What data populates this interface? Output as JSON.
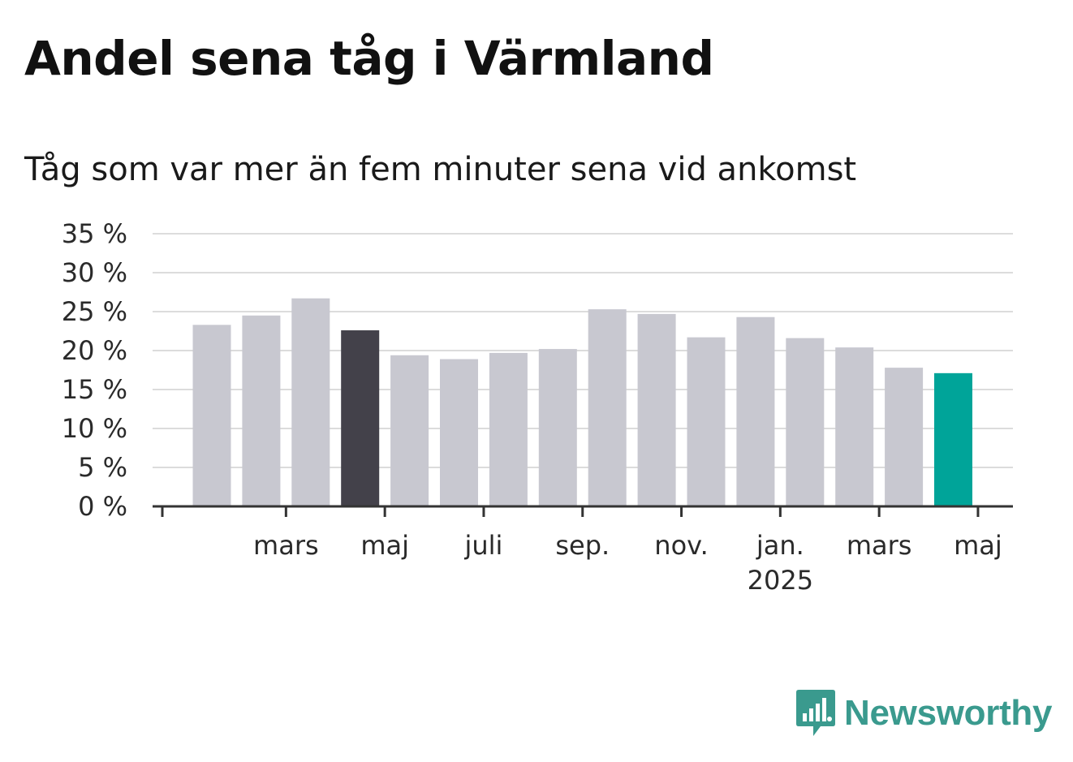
{
  "header": {
    "title": "Andel sena tåg i Värmland",
    "subtitle": "Tåg som var mer än fem minuter sena vid ankomst"
  },
  "brand": {
    "name": "Newsworthy",
    "logo_icon": "newsworthy-logo-icon",
    "color": "#3a9a8e"
  },
  "chart_data": {
    "type": "bar",
    "x_tick_labels": [
      {
        "label": "mars",
        "index": 2
      },
      {
        "label": "maj",
        "index": 4
      },
      {
        "label": "juli",
        "index": 6
      },
      {
        "label": "sep.",
        "index": 8
      },
      {
        "label": "nov.",
        "index": 10
      },
      {
        "label": "jan.",
        "sublabel": "2025",
        "index": 12
      },
      {
        "label": "mars",
        "index": 14
      },
      {
        "label": "maj",
        "index": 16
      }
    ],
    "values": [
      23.3,
      24.5,
      26.7,
      22.6,
      19.4,
      18.9,
      19.7,
      20.2,
      25.3,
      24.7,
      21.7,
      24.3,
      21.6,
      20.4,
      17.8,
      17.1
    ],
    "bar_colors": [
      "#c8c8d0",
      "#c8c8d0",
      "#c8c8d0",
      "#43414a",
      "#c8c8d0",
      "#c8c8d0",
      "#c8c8d0",
      "#c8c8d0",
      "#c8c8d0",
      "#c8c8d0",
      "#c8c8d0",
      "#c8c8d0",
      "#c8c8d0",
      "#c8c8d0",
      "#c8c8d0",
      "#00a499"
    ],
    "y_ticks": [
      0,
      5,
      10,
      15,
      20,
      25,
      30,
      35
    ],
    "y_tick_suffix": " %",
    "ylim": [
      0,
      35
    ],
    "grid": true
  }
}
